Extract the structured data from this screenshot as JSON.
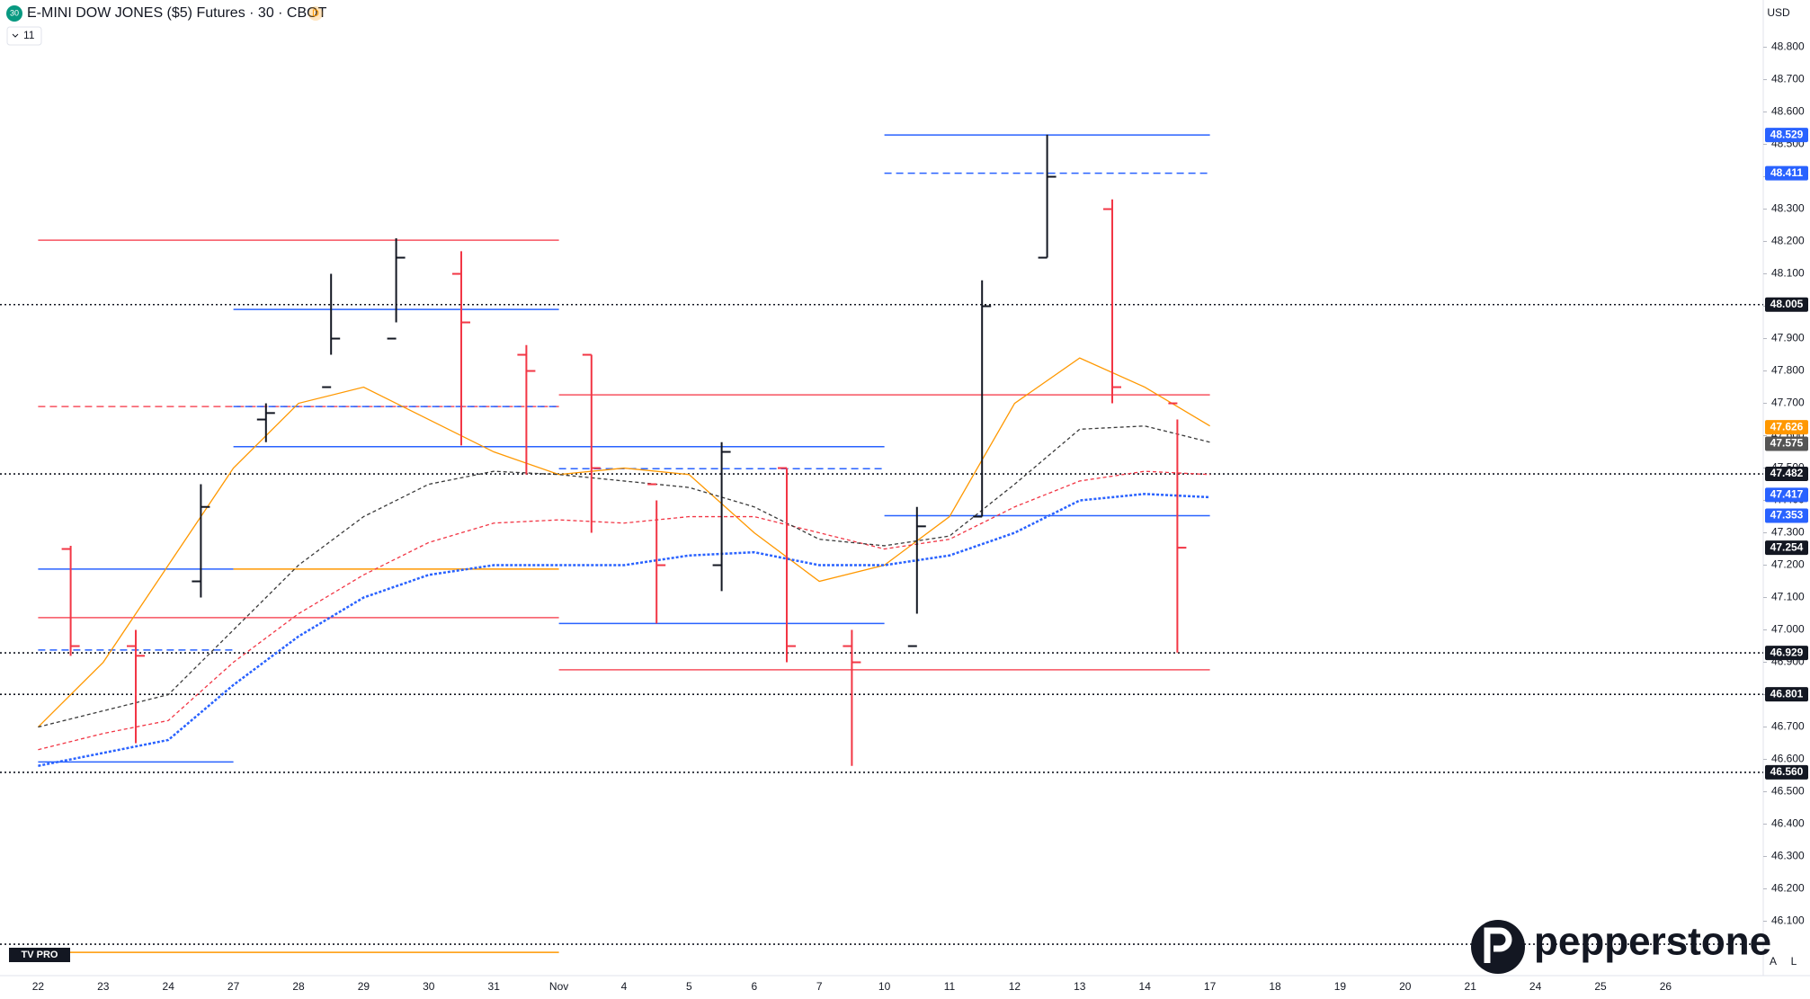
{
  "header": {
    "icon": "30",
    "title": "E-MINI DOW JONES ($5) Futures · 30 · CBOT",
    "badge": "D",
    "indicators": "11",
    "currency": "USD"
  },
  "footer": {
    "logo": "pepperstone",
    "tv": "TV PRO",
    "scale_buttons": [
      "A",
      "L"
    ]
  },
  "chart_data": {
    "type": "ohlc",
    "categories": [
      "22",
      "23",
      "24",
      "27",
      "28",
      "29",
      "30",
      "31",
      "Nov",
      "4",
      "5",
      "6",
      "7",
      "10",
      "11",
      "12",
      "13",
      "14",
      "17",
      "18",
      "19",
      "20",
      "21",
      "24",
      "25",
      "26"
    ],
    "ohlc": {
      "open": [
        47.25,
        46.95,
        47.15,
        47.65,
        47.75,
        47.9,
        48.1,
        47.85,
        47.85,
        47.45,
        47.2,
        47.5,
        46.95,
        46.95,
        47.35,
        48.15,
        48.3,
        47.7,
        null,
        null,
        null,
        null,
        null,
        null,
        null,
        null
      ],
      "high": [
        47.26,
        47.0,
        47.45,
        47.7,
        48.1,
        48.21,
        48.17,
        47.88,
        47.85,
        47.4,
        47.58,
        47.5,
        47.0,
        47.38,
        48.08,
        48.53,
        48.33,
        47.65,
        null,
        null,
        null,
        null,
        null,
        null,
        null,
        null
      ],
      "low": [
        46.92,
        46.65,
        47.1,
        47.58,
        47.85,
        47.95,
        47.57,
        47.48,
        47.3,
        47.02,
        47.12,
        46.9,
        46.58,
        47.05,
        47.35,
        48.15,
        47.7,
        46.93,
        null,
        null,
        null,
        null,
        null,
        null,
        null,
        null
      ],
      "close": [
        46.95,
        46.92,
        47.38,
        47.67,
        47.9,
        48.15,
        47.95,
        47.8,
        47.5,
        47.2,
        47.55,
        46.95,
        46.9,
        47.32,
        48.0,
        48.4,
        47.75,
        47.254,
        null,
        null,
        null,
        null,
        null,
        null,
        null,
        null
      ]
    },
    "up_color": "#131722",
    "down_color": "#f23645",
    "moving_averages": [
      {
        "color": "#ff9800",
        "style": "solid",
        "values": [
          46.7,
          46.9,
          47.2,
          47.5,
          47.7,
          47.75,
          47.65,
          47.55,
          47.48,
          47.5,
          47.48,
          47.3,
          47.15,
          47.2,
          47.35,
          47.7,
          47.84,
          47.75,
          47.63,
          null,
          null,
          null,
          null,
          null,
          null,
          null
        ]
      },
      {
        "color": "#f23645",
        "style": "dashed",
        "values": [
          46.63,
          46.68,
          46.72,
          46.9,
          47.05,
          47.17,
          47.27,
          47.33,
          47.34,
          47.33,
          47.35,
          47.35,
          47.3,
          47.25,
          47.28,
          47.38,
          47.46,
          47.49,
          47.48,
          null,
          null,
          null,
          null,
          null,
          null,
          null
        ]
      },
      {
        "color": "#3a3a3a",
        "style": "dashed",
        "values": [
          46.7,
          46.75,
          46.8,
          47.0,
          47.2,
          47.35,
          47.45,
          47.49,
          47.48,
          47.46,
          47.44,
          47.38,
          47.28,
          47.26,
          47.29,
          47.45,
          47.62,
          47.63,
          47.58,
          null,
          null,
          null,
          null,
          null,
          null,
          null
        ]
      },
      {
        "color": "#2962ff",
        "style": "dotted",
        "values": [
          46.58,
          46.62,
          46.66,
          46.83,
          46.98,
          47.1,
          47.17,
          47.2,
          47.2,
          47.2,
          47.23,
          47.24,
          47.2,
          47.2,
          47.23,
          47.3,
          47.4,
          47.42,
          47.41,
          null,
          null,
          null,
          null,
          null,
          null,
          null
        ]
      }
    ],
    "levels": [
      {
        "value": 48.529,
        "color": "#2962ff",
        "style": "solid",
        "from": 13,
        "to": 18
      },
      {
        "value": 48.411,
        "color": "#2962ff",
        "style": "dashed",
        "from": 13,
        "to": 18
      },
      {
        "value": 48.204,
        "color": "#f7525f",
        "style": "solid",
        "from": 0,
        "to": 8
      },
      {
        "value": 48.005,
        "color": "#131722",
        "style": "dotted",
        "span": "full"
      },
      {
        "value": 47.99,
        "color": "#2962ff",
        "style": "solid",
        "from": 3,
        "to": 8
      },
      {
        "value": 47.726,
        "color": "#f7525f",
        "style": "solid",
        "from": 8,
        "to": 18
      },
      {
        "value": 47.69,
        "color": "#f7525f",
        "style": "dashed",
        "from": 0,
        "to": 8
      },
      {
        "value": 47.69,
        "color": "#2962ff",
        "style": "dashed",
        "from": 3,
        "to": 8
      },
      {
        "value": 47.566,
        "color": "#2962ff",
        "style": "solid",
        "from": 3,
        "to": 13
      },
      {
        "value": 47.498,
        "color": "#2962ff",
        "style": "dashed",
        "from": 8,
        "to": 13
      },
      {
        "value": 47.482,
        "color": "#131722",
        "style": "dotted",
        "span": "full"
      },
      {
        "value": 47.353,
        "color": "#2962ff",
        "style": "solid",
        "from": 13,
        "to": 18
      },
      {
        "value": 47.188,
        "color": "#2962ff",
        "style": "solid",
        "from": 0,
        "to": 3
      },
      {
        "value": 47.188,
        "color": "#ff9800",
        "style": "solid",
        "from": 3,
        "to": 8
      },
      {
        "value": 47.038,
        "color": "#f7525f",
        "style": "solid",
        "from": 0,
        "to": 8
      },
      {
        "value": 47.02,
        "color": "#2962ff",
        "style": "solid",
        "from": 8,
        "to": 13
      },
      {
        "value": 46.938,
        "color": "#2962ff",
        "style": "dashed",
        "from": 0,
        "to": 3
      },
      {
        "value": 46.929,
        "color": "#131722",
        "style": "dotted",
        "span": "full"
      },
      {
        "value": 46.877,
        "color": "#f7525f",
        "style": "solid",
        "from": 8,
        "to": 18
      },
      {
        "value": 46.801,
        "color": "#131722",
        "style": "dotted",
        "span": "full"
      },
      {
        "value": 46.592,
        "color": "#2962ff",
        "style": "solid",
        "from": 0,
        "to": 3
      },
      {
        "value": 46.56,
        "color": "#131722",
        "style": "dotted",
        "span": "full"
      },
      {
        "value": 46.029,
        "color": "#131722",
        "style": "dotted",
        "span": "full"
      },
      {
        "value": 46.004,
        "color": "#ff9800",
        "style": "solid",
        "from": 0,
        "to": 8
      }
    ],
    "price_labels": [
      {
        "value": 48.529,
        "label": "48.529",
        "color": "#2962ff"
      },
      {
        "value": 48.411,
        "label": "48.411",
        "color": "#2962ff"
      },
      {
        "value": 48.005,
        "label": "48.005",
        "color": "#131722"
      },
      {
        "value": 47.626,
        "label": "47.626",
        "color": "#ff9800"
      },
      {
        "value": 47.575,
        "label": "47.575",
        "color": "#555555"
      },
      {
        "value": 47.482,
        "label": "47.482",
        "color": "#131722"
      },
      {
        "value": 47.417,
        "label": "47.417",
        "color": "#2962ff"
      },
      {
        "value": 47.353,
        "label": "47.353",
        "color": "#2962ff"
      },
      {
        "value": 47.254,
        "label": "47.254",
        "color": "#131722"
      },
      {
        "value": 46.929,
        "label": "46.929",
        "color": "#131722"
      },
      {
        "value": 46.801,
        "label": "46.801",
        "color": "#131722"
      },
      {
        "value": 46.56,
        "label": "46.560",
        "color": "#131722"
      }
    ],
    "ylim": [
      45.932,
      48.946
    ],
    "yticks": [
      {
        "value": 46.1,
        "label": "46.100"
      },
      {
        "value": 46.2,
        "label": "46.200"
      },
      {
        "value": 46.3,
        "label": "46.300"
      },
      {
        "value": 46.4,
        "label": "46.400"
      },
      {
        "value": 46.5,
        "label": "46.500"
      },
      {
        "value": 46.6,
        "label": "46.600"
      },
      {
        "value": 46.7,
        "label": "46.700"
      },
      {
        "value": 46.8,
        "label": "46.800"
      },
      {
        "value": 46.9,
        "label": "46.900"
      },
      {
        "value": 47.0,
        "label": "47.000"
      },
      {
        "value": 47.1,
        "label": "47.100"
      },
      {
        "value": 47.2,
        "label": "47.200"
      },
      {
        "value": 47.3,
        "label": "47.300"
      },
      {
        "value": 47.4,
        "label": "47.400"
      },
      {
        "value": 47.5,
        "label": "47.500"
      },
      {
        "value": 47.6,
        "label": "47.600"
      },
      {
        "value": 47.7,
        "label": "47.700"
      },
      {
        "value": 47.8,
        "label": "47.800"
      },
      {
        "value": 47.9,
        "label": "47.900"
      },
      {
        "value": 48.0,
        "label": "48.000"
      },
      {
        "value": 48.1,
        "label": "48.100"
      },
      {
        "value": 48.2,
        "label": "48.200"
      },
      {
        "value": 48.3,
        "label": "48.300"
      },
      {
        "value": 48.4,
        "label": "48.400"
      },
      {
        "value": 48.5,
        "label": "48.500"
      },
      {
        "value": 48.6,
        "label": "48.600"
      },
      {
        "value": 48.7,
        "label": "48.700"
      },
      {
        "value": 48.8,
        "label": "48.800"
      }
    ]
  }
}
